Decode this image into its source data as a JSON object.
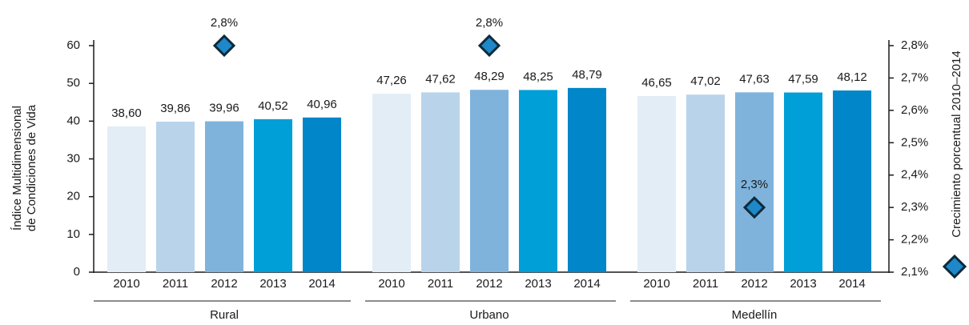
{
  "chart_data": {
    "type": "bar",
    "categories": [
      "Rural",
      "Urbano",
      "Medellín"
    ],
    "series": [
      {
        "name": "2010",
        "color": "#e3edf6",
        "values": [
          38.6,
          47.26,
          46.65
        ],
        "value_labels": [
          "38,60",
          "47,26",
          "46,65"
        ]
      },
      {
        "name": "2011",
        "color": "#b9d3ea",
        "values": [
          39.86,
          47.62,
          47.02
        ],
        "value_labels": [
          "39,86",
          "47,62",
          "47,02"
        ]
      },
      {
        "name": "2012",
        "color": "#7fb3dc",
        "values": [
          39.96,
          48.29,
          47.63
        ],
        "value_labels": [
          "39,96",
          "48,29",
          "47,63"
        ]
      },
      {
        "name": "2013",
        "color": "#009fd8",
        "values": [
          40.52,
          48.25,
          47.59
        ],
        "value_labels": [
          "40,52",
          "48,25",
          "47,59"
        ]
      },
      {
        "name": "2014",
        "color": "#0086c9",
        "values": [
          40.96,
          48.79,
          48.12
        ],
        "value_labels": [
          "40,96",
          "48,79",
          "48,12"
        ]
      }
    ],
    "growth": {
      "type": "scatter",
      "axis": "y2",
      "marker": "diamond",
      "color": "#1e88c8",
      "edge_color": "#0d2a3a",
      "values": [
        2.8,
        2.8,
        2.3
      ],
      "value_labels": [
        "2,8%",
        "2,8%",
        "2,3%"
      ]
    },
    "ylabel": [
      "Índice Multidimensional",
      "de Condiciones de Vida"
    ],
    "y2label": "Crecimiento porcentual 2010–2014",
    "ylim": [
      0,
      60
    ],
    "yticks": [
      0,
      10,
      20,
      30,
      40,
      50,
      60
    ],
    "y2lim": [
      2.1,
      2.8
    ],
    "y2ticks": [
      {
        "value": 2.1,
        "label": "2,1%"
      },
      {
        "value": 2.2,
        "label": "2,2%"
      },
      {
        "value": 2.3,
        "label": "2,3%"
      },
      {
        "value": 2.4,
        "label": "2,4%"
      },
      {
        "value": 2.5,
        "label": "2,5%"
      },
      {
        "value": 2.6,
        "label": "2,6%"
      },
      {
        "value": 2.7,
        "label": "2,7%"
      },
      {
        "value": 2.8,
        "label": "2,8%"
      }
    ],
    "grid": false
  }
}
